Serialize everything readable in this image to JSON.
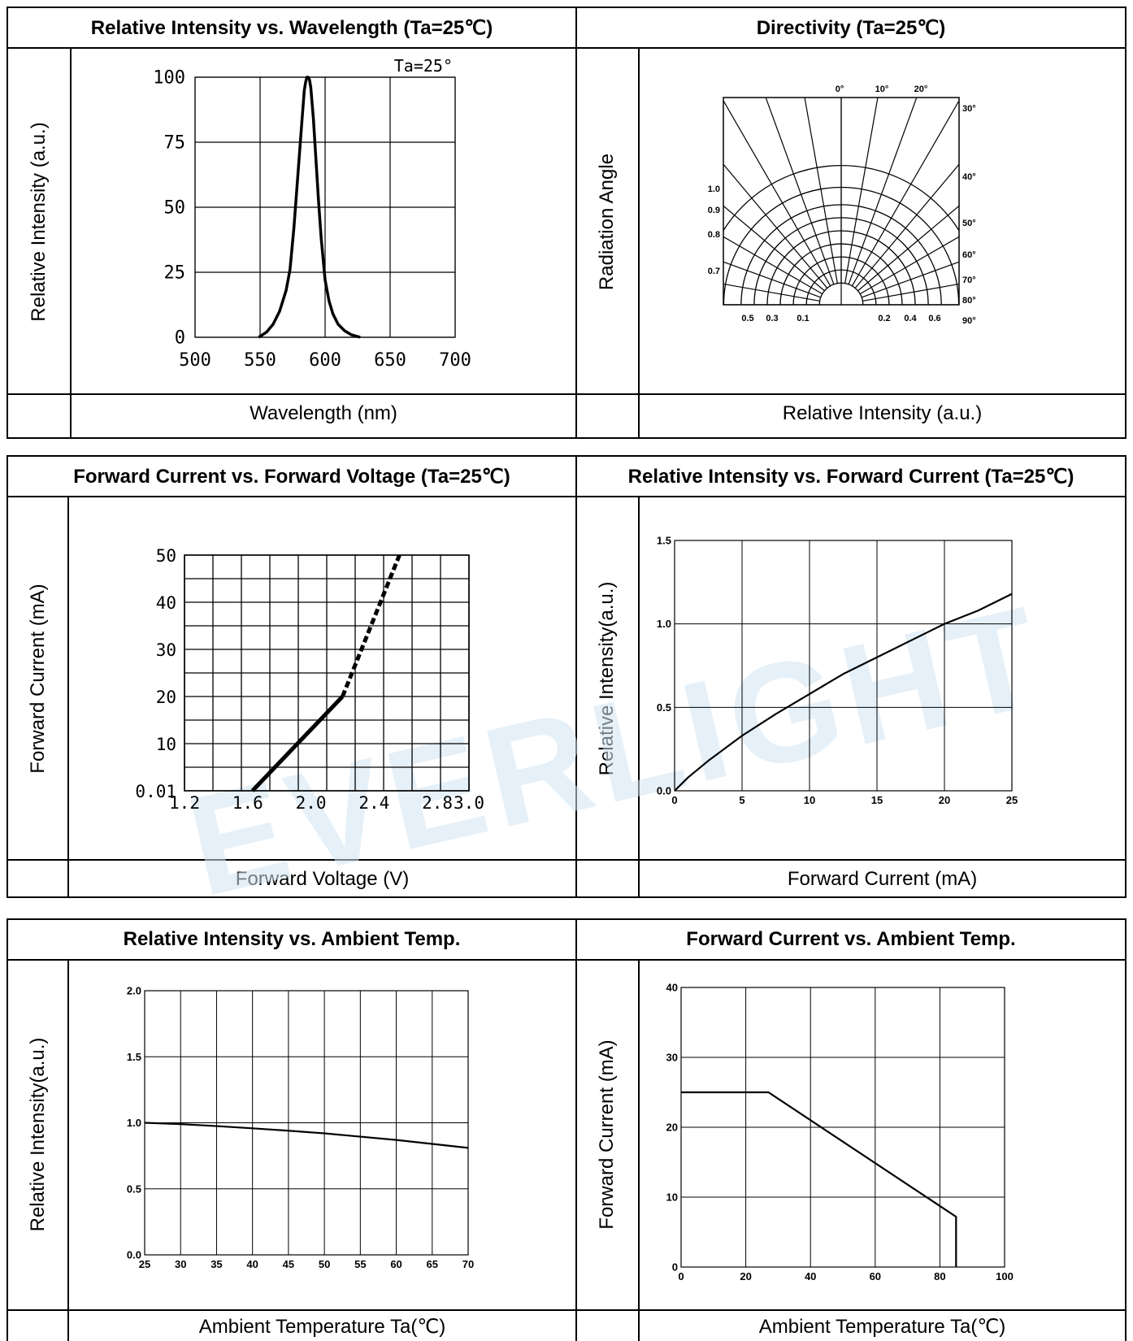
{
  "charts": [
    {
      "id": "spectrum",
      "title": "Relative Intensity vs. Wavelength (Ta=25℃)",
      "ylabel": "Relative Intensity (a.u.)",
      "xlabel": "Wavelength (nm)",
      "annotation": "Ta=25°"
    },
    {
      "id": "directivity",
      "title": "Directivity (Ta=25℃)",
      "ylabel": "Radiation Angle",
      "xlabel": "Relative Intensity (a.u.)"
    },
    {
      "id": "ifvf",
      "title": "Forward Current vs. Forward Voltage (Ta=25℃)",
      "ylabel": "Forward Current (mA)",
      "xlabel": "Forward Voltage (V)"
    },
    {
      "id": "ivif",
      "title": "Relative Intensity vs. Forward Current (Ta=25℃)",
      "ylabel": "Relative Intensity(a.u.)",
      "xlabel": "Forward Current (mA)"
    },
    {
      "id": "ivta",
      "title": "Relative Intensity vs. Ambient Temp.",
      "ylabel": "Relative Intensity(a.u.)",
      "xlabel": "Ambient Temperature Ta(℃)"
    },
    {
      "id": "ifta",
      "title": "Forward Current vs. Ambient Temp.",
      "ylabel": "Forward Current (mA)",
      "xlabel": "Ambient Temperature Ta(℃)"
    }
  ],
  "watermark": "EVERLIGHT",
  "chart_data": [
    {
      "type": "line",
      "title": "Relative Intensity vs. Wavelength (Ta=25℃)",
      "xlabel": "Wavelength (nm)",
      "ylabel": "Relative Intensity (a.u.)",
      "xlim": [
        500,
        700
      ],
      "ylim": [
        0,
        100
      ],
      "xticks": [
        "500",
        "550",
        "600",
        "650",
        "700"
      ],
      "yticks": [
        "0",
        "25",
        "50",
        "75",
        "100"
      ],
      "grid": true,
      "x": [
        549,
        555,
        560,
        565,
        570,
        573,
        576,
        579,
        582,
        584,
        585,
        586,
        587,
        588,
        589,
        591,
        593,
        595,
        597,
        600,
        603,
        606,
        610,
        615,
        620,
        625,
        627
      ],
      "y": [
        0,
        2,
        5,
        10,
        18,
        26,
        42,
        62,
        82,
        95,
        98,
        100,
        100,
        99,
        96,
        84,
        68,
        52,
        38,
        22,
        14,
        9,
        5,
        2.5,
        1,
        0.3,
        0
      ]
    },
    {
      "type": "line",
      "title": "Directivity (Ta=25℃)",
      "xlabel": "Relative Intensity (a.u.)",
      "ylabel": "Radiation Angle",
      "angle_labels": [
        "0°",
        "10°",
        "20°",
        "30°",
        "40°",
        "50°",
        "60°",
        "70°",
        "80°",
        "90°"
      ],
      "left_labels": [
        "1.0",
        "0.9",
        "0.8",
        "0.7"
      ],
      "intensity_labels_left": [
        "0.5",
        "0.3",
        "0.1"
      ],
      "intensity_labels_right": [
        "0.2",
        "0.4",
        "0.6"
      ],
      "grid": true
    },
    {
      "type": "line",
      "title": "Forward Current vs. Forward Voltage (Ta=25℃)",
      "xlabel": "Forward Voltage (V)",
      "ylabel": "Forward Current (mA)",
      "xlim": [
        1.2,
        3.0
      ],
      "ylim": [
        0.01,
        50
      ],
      "xticks": [
        "1.2",
        "1.6",
        "2.0",
        "2.4",
        "2.8",
        "3.0"
      ],
      "yticks": [
        "0.01",
        "10",
        "20",
        "30",
        "40",
        "50"
      ],
      "grid": true,
      "series": [
        {
          "style": "solid",
          "x": [
            1.63,
            2.2
          ],
          "y": [
            0.01,
            20
          ]
        },
        {
          "style": "dashed",
          "x": [
            2.2,
            2.56
          ],
          "y": [
            20,
            50
          ]
        }
      ]
    },
    {
      "type": "line",
      "title": "Relative Intensity vs. Forward Current (Ta=25℃)",
      "xlabel": "Forward Current (mA)",
      "ylabel": "Relative Intensity(a.u.)",
      "xlim": [
        0,
        25
      ],
      "ylim": [
        0,
        1.5
      ],
      "xticks": [
        "0",
        "5",
        "10",
        "15",
        "20",
        "25"
      ],
      "yticks": [
        "0.0",
        "0.5",
        "1.0",
        "1.5"
      ],
      "grid": true,
      "x": [
        0,
        1,
        2.5,
        5,
        7.5,
        10,
        12.5,
        15,
        17.5,
        20,
        22.5,
        25
      ],
      "y": [
        0,
        0.08,
        0.18,
        0.33,
        0.46,
        0.58,
        0.7,
        0.8,
        0.9,
        1.0,
        1.08,
        1.18
      ]
    },
    {
      "type": "line",
      "title": "Relative Intensity vs. Ambient Temp.",
      "xlabel": "Ambient Temperature Ta(℃)",
      "ylabel": "Relative Intensity(a.u.)",
      "xlim": [
        25,
        70
      ],
      "ylim": [
        0,
        2.0
      ],
      "xticks": [
        "25",
        "30",
        "35",
        "40",
        "45",
        "50",
        "55",
        "60",
        "65",
        "70"
      ],
      "yticks": [
        "0.0",
        "0.5",
        "1.0",
        "1.5",
        "2.0"
      ],
      "grid": true,
      "x": [
        25,
        30,
        35,
        40,
        45,
        50,
        55,
        60,
        65,
        70
      ],
      "y": [
        1.0,
        0.99,
        0.975,
        0.958,
        0.94,
        0.92,
        0.895,
        0.87,
        0.84,
        0.81
      ]
    },
    {
      "type": "line",
      "title": "Forward Current vs. Ambient Temp.",
      "xlabel": "Ambient Temperature Ta(℃)",
      "ylabel": "Forward Current (mA)",
      "xlim": [
        0,
        100
      ],
      "ylim": [
        0,
        40
      ],
      "xticks": [
        "0",
        "20",
        "40",
        "60",
        "80",
        "100"
      ],
      "yticks": [
        "0",
        "10",
        "20",
        "30",
        "40"
      ],
      "grid": true,
      "x": [
        0,
        27,
        85,
        85
      ],
      "y": [
        25,
        25,
        7.2,
        0
      ]
    }
  ]
}
